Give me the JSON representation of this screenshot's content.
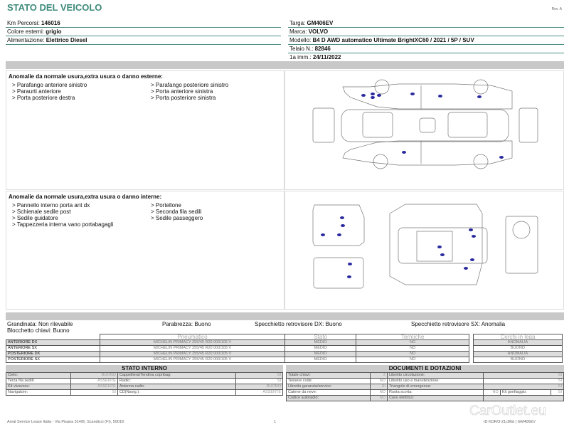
{
  "title": "STATO DEL VEICOLO",
  "rev": "Rev. A",
  "left_info": [
    {
      "label": "Km Percorsi:",
      "value": "146016"
    },
    {
      "label": "Colore esterni:",
      "value": "grigio"
    },
    {
      "label": "Alimentazione:",
      "value": "Elettrico Diesel"
    }
  ],
  "right_info": [
    {
      "label": "Targa:",
      "value": "GM406EV"
    },
    {
      "label": "Marca:",
      "value": "VOLVO"
    },
    {
      "label": "Modello:",
      "value": "B4 D AWD automatico Ultimate BrightXC60 / 2021 / 5P / SUV"
    },
    {
      "label": "Telaio N.:",
      "value": "82846"
    },
    {
      "label": "1a imm.:",
      "value": "24/11/2022"
    }
  ],
  "exterior": {
    "title": "Anomalie da normale usura,extra usura o danno esterne:",
    "items": [
      "> Parafango anteriore sinistro",
      "> Parafango posteriore sinistro",
      "> Paraurti anteriore",
      "> Porta anteriore sinistra",
      "> Porta posteriore destra",
      "> Porta posteriore sinistra"
    ]
  },
  "interior": {
    "title": "Anomalie da normale usura,extra usura o danno interne:",
    "items": [
      "> Pannello interno porta ant dx",
      "> Portellone",
      "> Schienale sedile post",
      "> Seconda fila sedili",
      "> Sedile guidatore",
      "> Sedile passeggero",
      "> Tappezzeria interna vano portabagagli"
    ]
  },
  "checks": {
    "grandinata": "Grandinata: Non rilevabile",
    "parabrezza": "Parabrezza: Buono",
    "spec_dx": "Specchietto retrovisore DX: Buono",
    "spec_sx": "Specchietto retrovisore SX: Anomalia",
    "blocchetto": "Blocchetto chiavi: Buono"
  },
  "tyres": {
    "headers": [
      "Pneumatico",
      "Stato",
      "Termiche",
      "Cerchi in lega"
    ],
    "rows": [
      {
        "pos": "ANTERIORE DX",
        "tyre": "MICHELIN PRIMACY  255/45 R20 000/105 V",
        "stato": "MEDIO",
        "termiche": "NO",
        "cerchi": "ANOMALIA"
      },
      {
        "pos": "ANTERIORE SX",
        "tyre": "MICHELIN PRIMACY  255/45 R20 000/105 V",
        "stato": "MEDIO",
        "termiche": "NO",
        "cerchi": "BUONO"
      },
      {
        "pos": "POSTERIORE DX",
        "tyre": "MICHELIN PRIMACY  255/45 R20 000/105 V",
        "stato": "MEDIO",
        "termiche": "NO",
        "cerchi": "ANOMALIA"
      },
      {
        "pos": "POSTERIORE SX",
        "tyre": "MICHELIN PRIMACY  255/45 R20 000/105 V",
        "stato": "MEDIO",
        "termiche": "NO",
        "cerchi": "BUONO"
      }
    ]
  },
  "stato_interno": {
    "title": "STATO INTERNO",
    "rows": [
      [
        {
          "k": "Cielo:",
          "v": "BUONO"
        },
        {
          "k": "Cappelliera/Tendina copribag:",
          "v": "SI"
        }
      ],
      [
        {
          "k": "Terza fila sedili:",
          "v": "ASSENTE"
        },
        {
          "k": "Radio:",
          "v": "SI"
        }
      ],
      [
        {
          "k": "Kit vivavoce:",
          "v": "ASSENTE"
        },
        {
          "k": "Antenna radio:",
          "v": "BUONO"
        }
      ],
      [
        {
          "k": "Navigatore:",
          "v": "SI"
        },
        {
          "k": "CD(Navig.):",
          "v": "ASSENTE"
        }
      ]
    ]
  },
  "documenti": {
    "title": "DOCUMENTI E DOTAZIONI",
    "rows": [
      [
        {
          "k": "Totale chiavi:",
          "v": "2"
        },
        {
          "k": "Libretto circolazione:",
          "v": "SI"
        }
      ],
      [
        {
          "k": "Tessere code:",
          "v": "NO"
        },
        {
          "k": "Libretto uso e manutenzione:",
          "v": "SI"
        }
      ],
      [
        {
          "k": "Libretto garanzia/service:",
          "v": "SI"
        },
        {
          "k": "Triangolo di emergenza:",
          "v": "SI"
        }
      ],
      [
        {
          "k": "Catene da neve:",
          "v": "NO"
        },
        {
          "k": "Ruota scorta:",
          "v": "NO"
        },
        {
          "k": "Kit gonfiaggio:",
          "v": "SI"
        }
      ],
      [
        {
          "k": "Codice autoradio:",
          "v": "NO"
        },
        {
          "k": "Cavo elettrico:",
          "v": ""
        }
      ]
    ]
  },
  "footer": {
    "address": "Arval Service Lease Italia - Via Pisana 314/B, Scandicci (FI), 50018",
    "page": "1",
    "id": "ID KDR/3-21c86d | GM406EV"
  },
  "watermark": "CarOutlet.eu"
}
